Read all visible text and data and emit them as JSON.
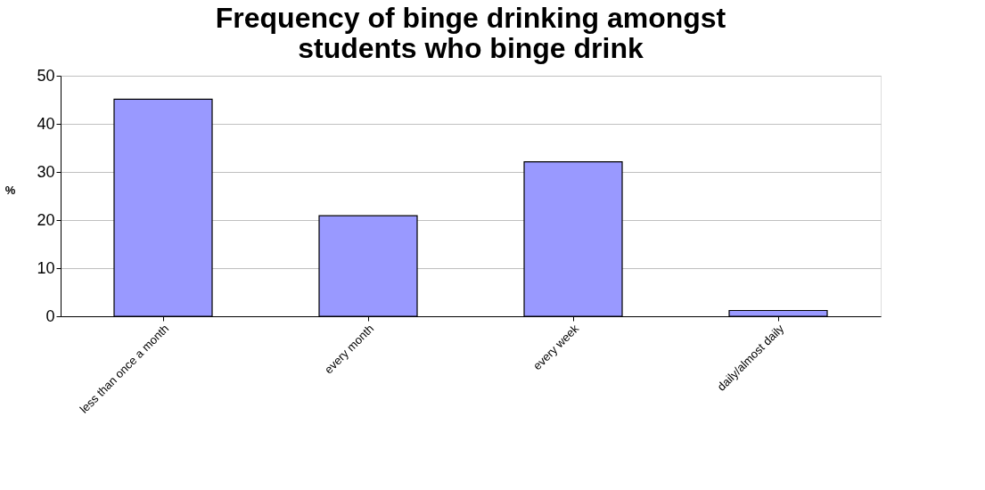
{
  "chart_data": {
    "type": "bar",
    "title": [
      "Frequency of binge drinking amongst",
      "students who binge drink"
    ],
    "ylabel": "%",
    "categories": [
      "less than once a month",
      "every month",
      "every week",
      "daily/almost daily"
    ],
    "values": [
      45.1,
      20.9,
      32.1,
      1.2
    ],
    "color": "#9999ff",
    "ylim": [
      0,
      50
    ],
    "yticks": [
      0,
      10,
      20,
      30,
      40,
      50
    ],
    "grid": "y"
  }
}
